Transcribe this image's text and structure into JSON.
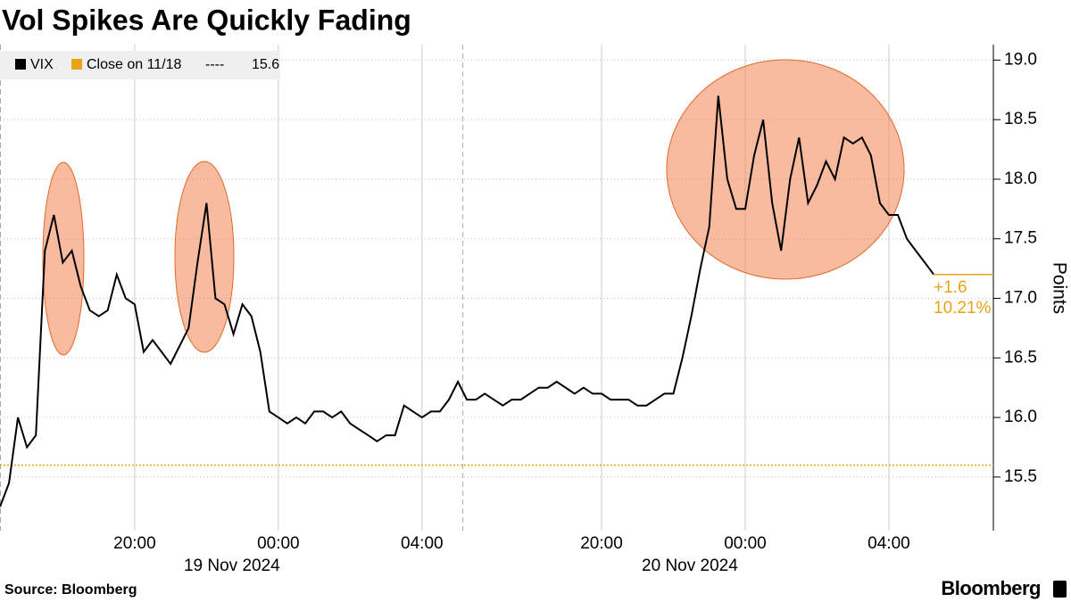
{
  "chart_data": {
    "type": "line",
    "title": "Vol Spikes Are Quickly Fading",
    "ylabel": "Points",
    "source": "Source: Bloomberg",
    "brand": "Bloomberg",
    "categories": [
      null,
      null,
      null,
      null,
      null,
      null,
      null,
      null,
      null,
      null,
      null,
      null,
      null,
      null,
      null,
      "20:00",
      null,
      null,
      null,
      null,
      null,
      null,
      null,
      null,
      null,
      null,
      null,
      null,
      null,
      null,
      null,
      "00:00",
      null,
      null,
      null,
      null,
      null,
      null,
      null,
      null,
      null,
      null,
      null,
      null,
      null,
      null,
      null,
      "04:00",
      null,
      null,
      null,
      null,
      null,
      null,
      null,
      null,
      null,
      null,
      null,
      null,
      null,
      null,
      null,
      null,
      null,
      null,
      null,
      "20:00",
      null,
      null,
      null,
      null,
      null,
      null,
      null,
      null,
      null,
      null,
      null,
      null,
      null,
      null,
      null,
      "00:00",
      null,
      null,
      null,
      null,
      null,
      null,
      null,
      null,
      null,
      null,
      null,
      null,
      null,
      null,
      null,
      "04:00",
      null,
      null,
      null,
      null,
      null
    ],
    "dates": [
      null,
      null,
      null,
      null,
      null,
      null,
      null,
      null,
      null,
      null,
      null,
      null,
      null,
      null,
      null,
      null,
      null,
      null,
      null,
      null,
      null,
      null,
      null,
      null,
      null,
      null,
      null,
      null,
      null,
      null,
      null,
      "19 Nov 2024",
      null,
      null,
      null,
      null,
      null,
      null,
      null,
      null,
      null,
      null,
      null,
      null,
      null,
      null,
      null,
      null,
      null,
      null,
      null,
      null,
      null,
      null,
      null,
      null,
      null,
      null,
      null,
      null,
      null,
      null,
      null,
      null,
      null,
      null,
      null,
      null,
      null,
      null,
      null,
      null,
      null,
      null,
      null,
      null,
      null,
      null,
      null,
      null,
      null,
      null,
      "20 Nov 2024",
      null,
      null,
      null,
      null,
      null,
      null,
      null,
      null,
      null,
      null,
      null,
      null,
      null,
      null,
      null,
      null,
      null,
      null,
      null,
      null,
      null
    ],
    "series": [
      {
        "name": "VIX",
        "color": "#000000",
        "values": [
          15.25,
          15.45,
          16.0,
          15.75,
          15.85,
          17.4,
          17.7,
          17.3,
          17.4,
          17.1,
          16.9,
          16.85,
          16.9,
          17.2,
          17.0,
          16.95,
          16.55,
          16.65,
          16.55,
          16.45,
          16.6,
          16.75,
          17.3,
          17.8,
          17.0,
          16.95,
          16.7,
          16.95,
          16.85,
          16.55,
          16.05,
          16.0,
          15.95,
          16.0,
          15.95,
          16.05,
          16.05,
          16.0,
          16.05,
          15.95,
          15.9,
          15.85,
          15.8,
          15.85,
          15.85,
          16.1,
          16.05,
          16.0,
          16.05,
          16.05,
          16.15,
          16.3,
          16.15,
          16.15,
          16.2,
          16.15,
          16.1,
          16.15,
          16.15,
          16.2,
          16.25,
          16.25,
          16.3,
          16.25,
          16.2,
          16.25,
          16.2,
          16.2,
          16.15,
          16.15,
          16.15,
          16.1,
          16.1,
          16.15,
          16.2,
          16.2,
          16.5,
          16.85,
          17.25,
          17.6,
          18.7,
          18.0,
          17.75,
          17.75,
          18.2,
          18.5,
          17.8,
          17.4,
          18.0,
          18.35,
          17.8,
          17.95,
          18.15,
          18.0,
          18.35,
          18.3,
          18.35,
          18.2,
          17.8,
          17.7,
          17.7,
          17.5,
          17.4,
          17.3,
          17.2
        ]
      }
    ],
    "reference": {
      "name": "Close on 11/18",
      "separator": "----",
      "value": 15.6,
      "color": "#e8a317"
    },
    "change": {
      "value": 1.6,
      "label": "+1.6"
    },
    "change_pct": {
      "value": 10.21,
      "label": "10.21%"
    },
    "ylim": [
      15.05,
      19.13
    ],
    "yticks": [
      15.5,
      {
        "value": 16.0,
        "label": "16.0"
      },
      16.5,
      {
        "value": 17.0,
        "label": "17.0"
      },
      17.5,
      {
        "value": 18.0,
        "label": "18.0"
      },
      18.5,
      {
        "value": 19.0,
        "label": "19.0"
      }
    ],
    "grid": true
  }
}
